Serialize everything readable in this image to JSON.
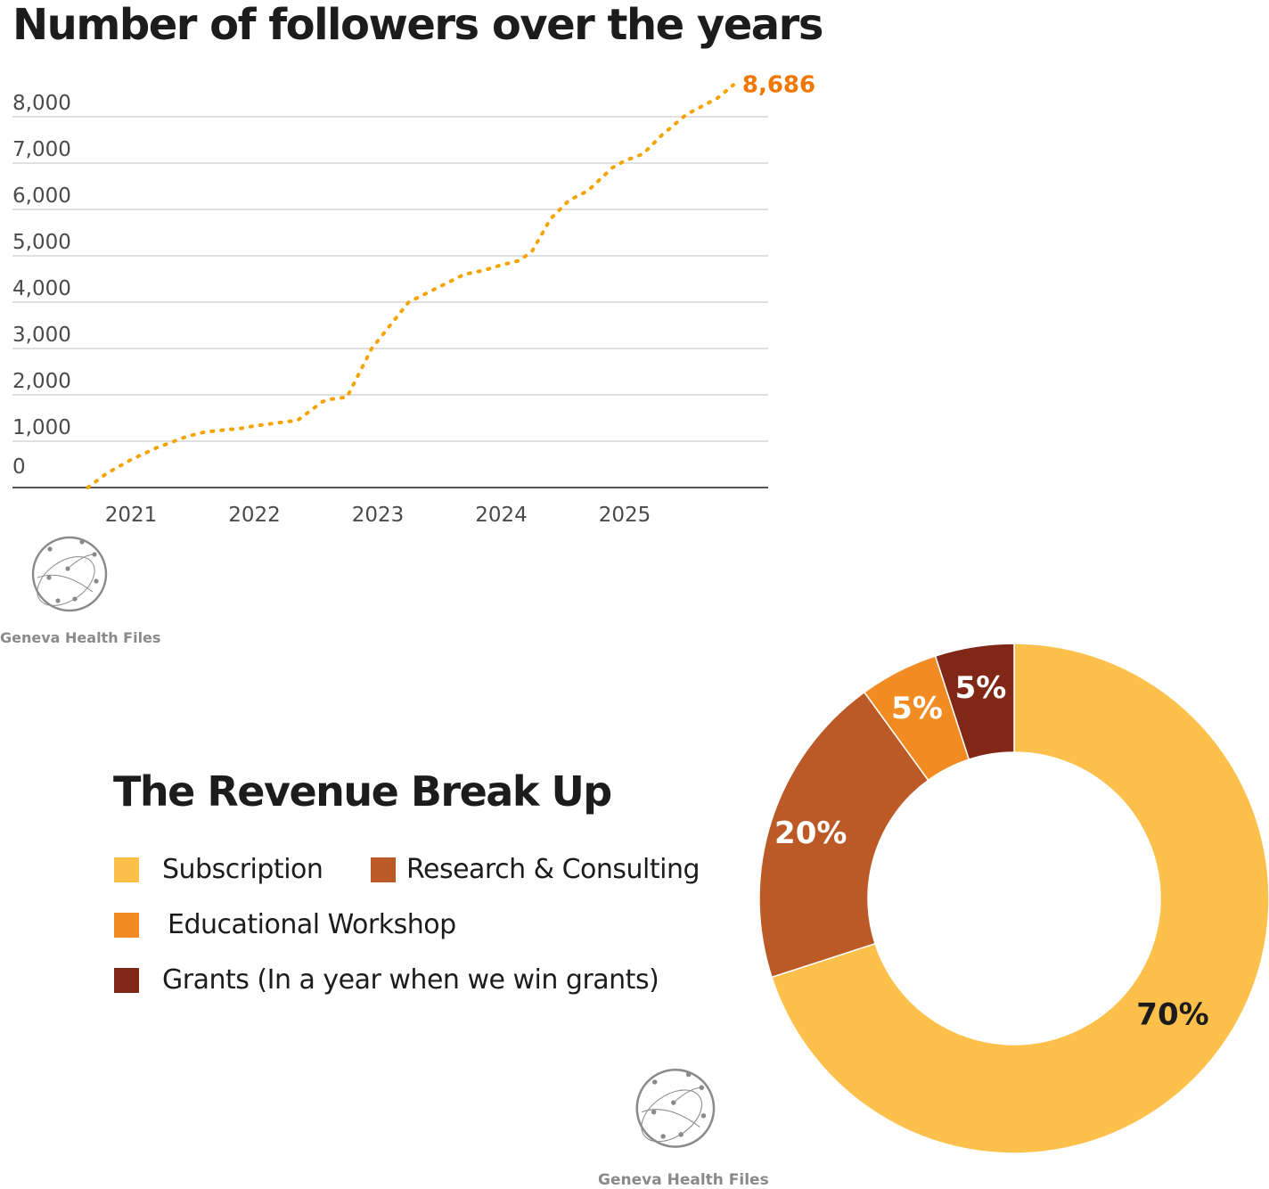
{
  "chart_data": [
    {
      "type": "line",
      "title": "Number of followers over the years",
      "xlabel": "",
      "ylabel": "",
      "x_ticks": [
        "2021",
        "2022",
        "2023",
        "2024",
        "2025"
      ],
      "y_ticks": [
        "0",
        "1,000",
        "2,000",
        "3,000",
        "4,000",
        "5,000",
        "6,000",
        "7,000",
        "8,000"
      ],
      "ylim": [
        0,
        8000
      ],
      "grid": true,
      "line_style": "dotted",
      "line_color": "#F5A300",
      "end_label": "8,686",
      "end_label_color": "#F07800",
      "series": [
        {
          "x": [
            2020.65,
            2020.8,
            2021.0,
            2021.2,
            2021.45,
            2021.6,
            2021.9,
            2022.0,
            2022.2,
            2022.35,
            2022.55,
            2022.6,
            2022.75,
            2022.95,
            2023.1,
            2023.25,
            2023.4,
            2023.55,
            2023.7,
            2023.85,
            2024.0,
            2024.15,
            2024.25,
            2024.4,
            2024.55,
            2024.7,
            2024.9,
            2025.0,
            2025.15,
            2025.3,
            2025.5,
            2025.75,
            2025.88
          ],
          "y": [
            0,
            300,
            600,
            850,
            1100,
            1200,
            1280,
            1330,
            1400,
            1450,
            1850,
            1900,
            1950,
            3000,
            3500,
            4000,
            4200,
            4400,
            4600,
            4680,
            4800,
            4900,
            5100,
            5800,
            6200,
            6400,
            6900,
            7050,
            7200,
            7600,
            8050,
            8400,
            8686
          ]
        }
      ]
    },
    {
      "type": "pie",
      "donut": true,
      "title": "The Revenue Break Up",
      "categories": [
        "Subscription",
        "Research & Consulting",
        "Educational Workshop",
        "Grants (In a year when we win grants)"
      ],
      "values": [
        70,
        20,
        5,
        5
      ],
      "labels": [
        "70%",
        "20%",
        "5%",
        "5%"
      ],
      "colors": [
        "#FDC04A",
        "#BC5A27",
        "#F28C22",
        "#812718"
      ],
      "label_colors": [
        "#1c1c1c",
        "#ffffff",
        "#ffffff",
        "#ffffff"
      ],
      "legend": {
        "placement": "left",
        "items": [
          {
            "label": "Subscription",
            "color": "#FDC04A"
          },
          {
            "label": "Research & Consulting",
            "color": "#BC5A27"
          },
          {
            "label": "Educational Workshop",
            "color": "#F28C22"
          },
          {
            "label": "Grants (In a year when we win grants)",
            "color": "#812718"
          }
        ]
      }
    }
  ],
  "brand": {
    "name": "Geneva Health Files",
    "logo_icon": "globe-network-icon"
  },
  "colors": {
    "grid": "#d6d6d6",
    "axis": "#555555",
    "tick_text": "#4a4a4a",
    "brand_gray": "#8a8a8a"
  }
}
